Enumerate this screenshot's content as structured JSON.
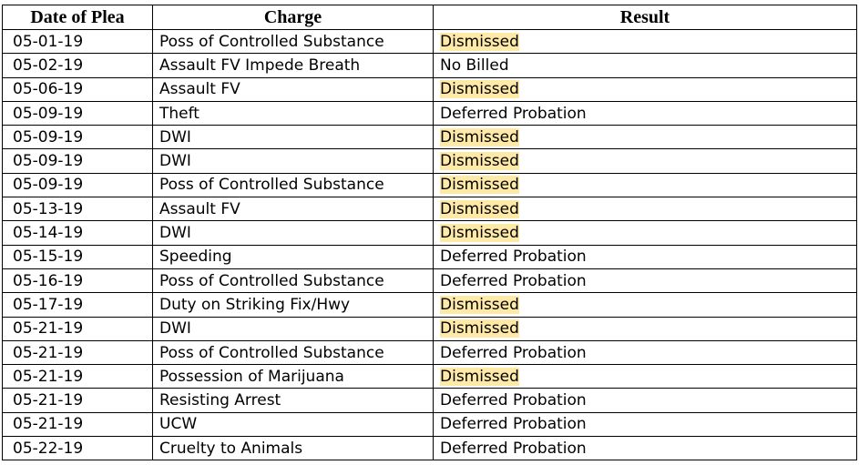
{
  "table": {
    "headers": {
      "date": "Date of Plea",
      "charge": "Charge",
      "result": "Result"
    },
    "highlight_color": "#ffe9a6",
    "rows": [
      {
        "date": "05-01-19",
        "charge": "Poss of Controlled Substance",
        "result": "Dismissed",
        "highlighted": true
      },
      {
        "date": "05-02-19",
        "charge": "Assault FV Impede Breath",
        "result": "No Billed",
        "highlighted": false
      },
      {
        "date": "05-06-19",
        "charge": "Assault FV",
        "result": "Dismissed",
        "highlighted": true
      },
      {
        "date": "05-09-19",
        "charge": "Theft",
        "result": "Deferred Probation",
        "highlighted": false
      },
      {
        "date": "05-09-19",
        "charge": "DWI",
        "result": "Dismissed",
        "highlighted": true
      },
      {
        "date": "05-09-19",
        "charge": "DWI",
        "result": "Dismissed",
        "highlighted": true
      },
      {
        "date": "05-09-19",
        "charge": "Poss of Controlled Substance",
        "result": "Dismissed",
        "highlighted": true
      },
      {
        "date": "05-13-19",
        "charge": "Assault FV",
        "result": "Dismissed",
        "highlighted": true
      },
      {
        "date": "05-14-19",
        "charge": "DWI",
        "result": "Dismissed",
        "highlighted": true
      },
      {
        "date": "05-15-19",
        "charge": "Speeding",
        "result": "Deferred Probation",
        "highlighted": false
      },
      {
        "date": "05-16-19",
        "charge": "Poss of Controlled Substance",
        "result": "Deferred Probation",
        "highlighted": false
      },
      {
        "date": "05-17-19",
        "charge": "Duty on Striking Fix/Hwy",
        "result": "Dismissed",
        "highlighted": true
      },
      {
        "date": "05-21-19",
        "charge": "DWI",
        "result": "Dismissed",
        "highlighted": true
      },
      {
        "date": "05-21-19",
        "charge": "Poss of Controlled Substance",
        "result": "Deferred Probation",
        "highlighted": false
      },
      {
        "date": "05-21-19",
        "charge": "Possession of Marijuana",
        "result": "Dismissed",
        "highlighted": true
      },
      {
        "date": "05-21-19",
        "charge": "Resisting Arrest",
        "result": "Deferred Probation",
        "highlighted": false
      },
      {
        "date": "05-21-19",
        "charge": "UCW",
        "result": "Deferred Probation",
        "highlighted": false
      },
      {
        "date": "05-22-19",
        "charge": "Cruelty to Animals",
        "result": "Deferred Probation",
        "highlighted": false
      }
    ]
  }
}
